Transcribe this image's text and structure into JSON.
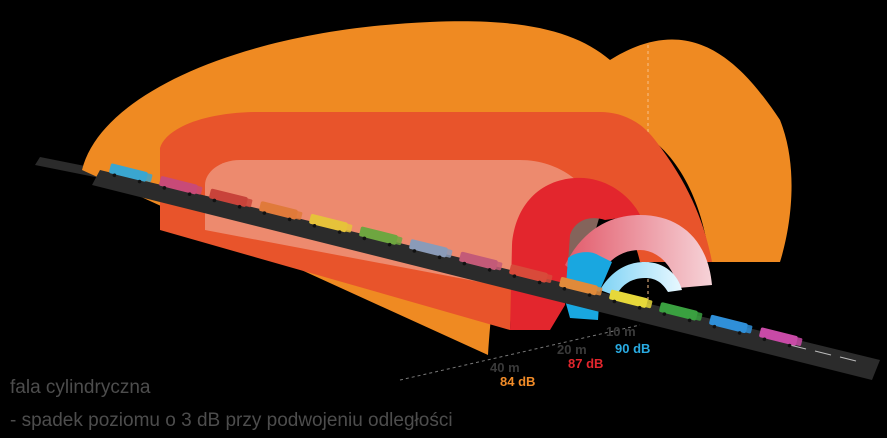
{
  "labels": {
    "d40": "40 m",
    "d20": "20 m",
    "d10": "10 m",
    "l84": "84 dB",
    "l87": "87 dB",
    "l90": "90 dB"
  },
  "caption": {
    "line1": "fala cylindryczna",
    "line2": "- spadek poziomu o 3 dB przy podwojeniu odległości"
  },
  "colors": {
    "outer": "#ef8a22",
    "middle": "#e8542b",
    "inner_back": "#f0b6a6",
    "red": "#e3262d",
    "blue": "#19a7e0",
    "label40": "#f28c28",
    "label20": "#e3262d",
    "label10": "#29abe2",
    "distance_text": "#3a3a3a",
    "road": "#2b2b2b"
  },
  "vehicles": [
    {
      "color": "#3aa6d0"
    },
    {
      "color": "#c84a78"
    },
    {
      "color": "#c8433a"
    },
    {
      "color": "#e07a3a"
    },
    {
      "color": "#e6c23a"
    },
    {
      "color": "#6ea640"
    },
    {
      "color": "#8a9bb8"
    },
    {
      "color": "#c35a78"
    },
    {
      "color": "#d84a3a"
    },
    {
      "color": "#e08a3a"
    },
    {
      "color": "#e6d83a"
    },
    {
      "color": "#3aa040"
    },
    {
      "color": "#2f8fd8"
    },
    {
      "color": "#c84aa6"
    }
  ]
}
